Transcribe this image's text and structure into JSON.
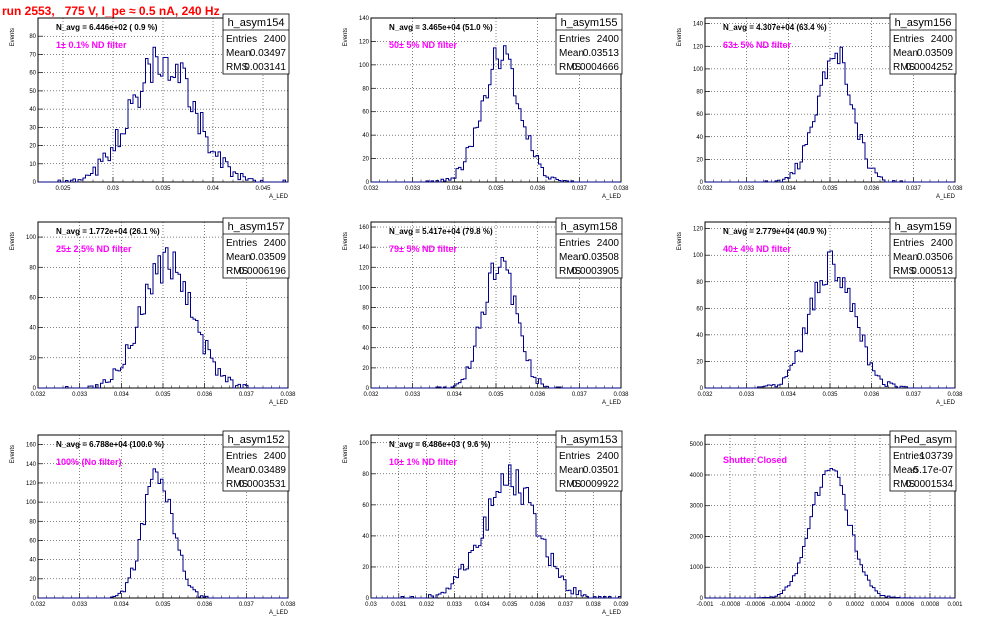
{
  "page": {
    "title": "run 2553,   775 V, I_pe ≈ 0.5 nA, 240 Hz"
  },
  "colors": {
    "histogram_line": "#00008b",
    "filter_text": "#ff00ff",
    "title_text": "#ff0000",
    "grid": "#000000"
  },
  "chart_data": [
    {
      "type": "histogram",
      "name": "h_asym154",
      "navg": "N_avg = 6.446e+02 ( 0.9 %)",
      "filter": "1± 0.1% ND filter",
      "stats": {
        "entries": "2400",
        "mean": "0.03497",
        "rms": "0.003141"
      },
      "xlabel": "A_LED",
      "ylabel": "Events",
      "xlim": [
        0.0225,
        0.0475
      ],
      "ylim": [
        0,
        90
      ],
      "xticks": [
        0.025,
        0.03,
        0.035,
        0.04,
        0.045
      ],
      "yticks": [
        0,
        10,
        20,
        30,
        40,
        50,
        60,
        70,
        80
      ],
      "dist": {
        "mean": 0.03497,
        "rms": 0.003141,
        "peak": 82,
        "nbins": 100
      }
    },
    {
      "type": "histogram",
      "name": "h_asym155",
      "navg": "N_avg = 3.465e+04 (51.0 %)",
      "filter": "50± 5% ND filter",
      "stats": {
        "entries": "2400",
        "mean": "0.03513",
        "rms": "0.0004666"
      },
      "xlabel": "A_LED",
      "ylabel": "Events",
      "xlim": [
        0.032,
        0.038
      ],
      "ylim": [
        0,
        140
      ],
      "xticks": [
        0.032,
        0.033,
        0.034,
        0.035,
        0.036,
        0.037,
        0.038
      ],
      "yticks": [
        0,
        20,
        40,
        60,
        80,
        100,
        120,
        140
      ],
      "dist": {
        "mean": 0.03513,
        "rms": 0.0004666,
        "peak": 130,
        "nbins": 100
      }
    },
    {
      "type": "histogram",
      "name": "h_asym156",
      "navg": "N_avg = 4.307e+04 (63.4 %)",
      "filter": "63± 5% ND filter",
      "stats": {
        "entries": "2400",
        "mean": "0.03509",
        "rms": "0.0004252"
      },
      "xlabel": "A_LED",
      "ylabel": "Events",
      "xlim": [
        0.032,
        0.038
      ],
      "ylim": [
        0,
        145
      ],
      "xticks": [
        0.032,
        0.033,
        0.034,
        0.035,
        0.036,
        0.037,
        0.038
      ],
      "yticks": [
        0,
        20,
        40,
        60,
        80,
        100,
        120,
        140
      ],
      "dist": {
        "mean": 0.03509,
        "rms": 0.0004252,
        "peak": 140,
        "nbins": 100
      }
    },
    {
      "type": "histogram",
      "name": "h_asym157",
      "navg": "N_avg = 1.772e+04 (26.1 %)",
      "filter": "25± 2.5% ND filter",
      "stats": {
        "entries": "2400",
        "mean": "0.03509",
        "rms": "0.0006196"
      },
      "xlabel": "A_LED",
      "ylabel": "Events",
      "xlim": [
        0.032,
        0.038
      ],
      "ylim": [
        0,
        110
      ],
      "xticks": [
        0.032,
        0.033,
        0.034,
        0.035,
        0.036,
        0.037,
        0.038
      ],
      "yticks": [
        0,
        20,
        40,
        60,
        80,
        100
      ],
      "dist": {
        "mean": 0.03509,
        "rms": 0.0006196,
        "peak": 100,
        "nbins": 100
      }
    },
    {
      "type": "histogram",
      "name": "h_asym158",
      "navg": "N_avg = 5.417e+04 (79.8 %)",
      "filter": "79± 5% ND filter",
      "stats": {
        "entries": "2400",
        "mean": "0.03508",
        "rms": "0.0003905"
      },
      "xlabel": "A_LED",
      "ylabel": "Events",
      "xlim": [
        0.032,
        0.038
      ],
      "ylim": [
        0,
        165
      ],
      "xticks": [
        0.032,
        0.033,
        0.034,
        0.035,
        0.036,
        0.037,
        0.038
      ],
      "yticks": [
        0,
        20,
        40,
        60,
        80,
        100,
        120,
        140,
        160
      ],
      "dist": {
        "mean": 0.03508,
        "rms": 0.0003905,
        "peak": 155,
        "nbins": 100
      }
    },
    {
      "type": "histogram",
      "name": "h_asym159",
      "navg": "N_avg = 2.779e+04 (40.9 %)",
      "filter": "40± 4% ND filter",
      "stats": {
        "entries": "2400",
        "mean": "0.03506",
        "rms": "0.000513"
      },
      "xlabel": "A_LED",
      "ylabel": "Events",
      "xlim": [
        0.032,
        0.038
      ],
      "ylim": [
        0,
        125
      ],
      "xticks": [
        0.032,
        0.033,
        0.034,
        0.035,
        0.036,
        0.037,
        0.038
      ],
      "yticks": [
        0,
        20,
        40,
        60,
        80,
        100,
        120
      ],
      "dist": {
        "mean": 0.03506,
        "rms": 0.000513,
        "peak": 115,
        "nbins": 100
      }
    },
    {
      "type": "histogram",
      "name": "h_asym152",
      "navg": "N_avg = 6.788e+04 (100.0 %)",
      "filter": "100% (No filter)",
      "stats": {
        "entries": "2400",
        "mean": "0.03489",
        "rms": "0.0003531"
      },
      "xlabel": "A_LED",
      "ylabel": "Events",
      "xlim": [
        0.032,
        0.038
      ],
      "ylim": [
        0,
        170
      ],
      "xticks": [
        0.032,
        0.033,
        0.034,
        0.035,
        0.036,
        0.037,
        0.038
      ],
      "yticks": [
        0,
        20,
        40,
        60,
        80,
        100,
        120,
        140,
        160
      ],
      "dist": {
        "mean": 0.03489,
        "rms": 0.0003531,
        "peak": 165,
        "nbins": 100
      }
    },
    {
      "type": "histogram",
      "name": "h_asym153",
      "navg": "N_avg = 6.486e+03 ( 9.6 %)",
      "filter": "10± 1% ND filter",
      "stats": {
        "entries": "2400",
        "mean": "0.03501",
        "rms": "0.0009922"
      },
      "xlabel": "A_LED",
      "ylabel": "Events",
      "xlim": [
        0.03,
        0.039
      ],
      "ylim": [
        0,
        105
      ],
      "xticks": [
        0.03,
        0.031,
        0.032,
        0.033,
        0.034,
        0.035,
        0.036,
        0.037,
        0.038,
        0.039
      ],
      "yticks": [
        0,
        20,
        40,
        60,
        80,
        100
      ],
      "dist": {
        "mean": 0.03501,
        "rms": 0.0009922,
        "peak": 90,
        "nbins": 100
      }
    },
    {
      "type": "histogram",
      "name": "hPed_asym",
      "navg": "",
      "filter": "Shutter Closed",
      "stats": {
        "entries": "103739",
        "mean": "-5.17e-07",
        "rms": "0.0001534"
      },
      "xlabel": "",
      "ylabel": "",
      "xlim": [
        -0.001,
        0.001
      ],
      "ylim": [
        0,
        5300
      ],
      "xticks": [
        -0.001,
        -0.0008,
        -0.0006,
        -0.0004,
        -0.0002,
        0,
        0.0002,
        0.0004,
        0.0006,
        0.0008,
        0.001
      ],
      "yticks": [
        0,
        1000,
        2000,
        3000,
        4000,
        5000
      ],
      "dist": {
        "mean": -5.17e-07,
        "rms": 0.0001534,
        "peak": 5050,
        "nbins": 100
      }
    }
  ]
}
